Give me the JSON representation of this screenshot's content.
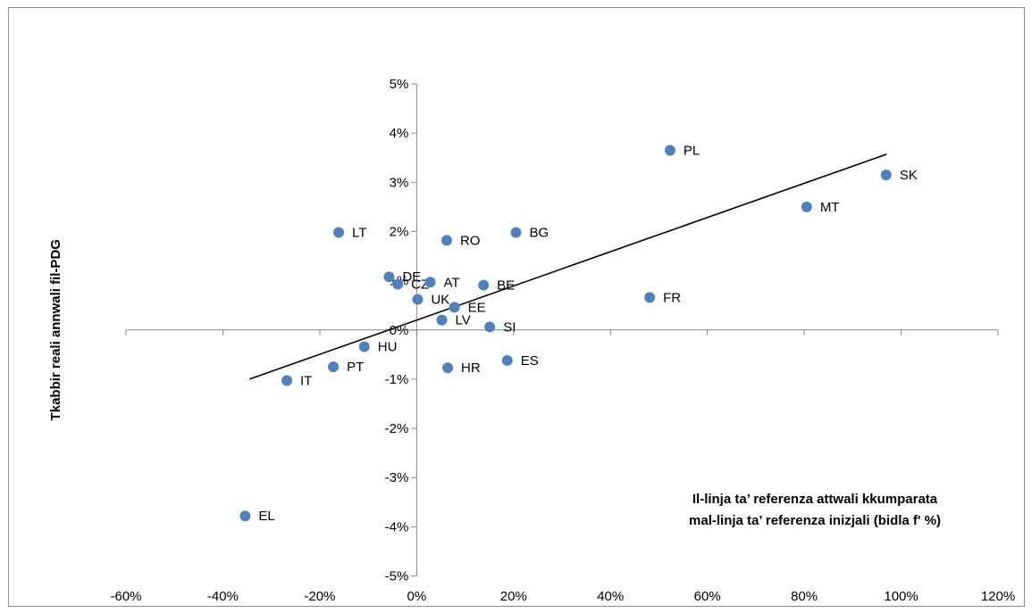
{
  "chart_data": {
    "type": "scatter",
    "xlabel": "Il-linja ta’ referenza attwali kkumparata mal-linja ta’ referenza inizjali (bidla f' %)",
    "xlabel_lines": [
      "Il-linja ta’ referenza attwali kkumparata",
      "mal-linja ta’ referenza inizjali (bidla f' %)"
    ],
    "ylabel": "Tkabbir reali annwali fil-PDG",
    "xlim": [
      -60,
      120
    ],
    "ylim": [
      -5,
      5
    ],
    "x_ticks": [
      "-60%",
      "-40%",
      "-20%",
      "0%",
      "20%",
      "40%",
      "60%",
      "80%",
      "100%",
      "120%"
    ],
    "y_ticks": [
      "-5%",
      "-4%",
      "-3%",
      "-2%",
      "-1%",
      "0%",
      "1%",
      "2%",
      "3%",
      "4%",
      "5%"
    ],
    "points": [
      {
        "label": "PL",
        "x": 52.3,
        "y": 3.65
      },
      {
        "label": "SK",
        "x": 96.9,
        "y": 3.15
      },
      {
        "label": "MT",
        "x": 80.5,
        "y": 2.5
      },
      {
        "label": "LT",
        "x": -16.1,
        "y": 1.98
      },
      {
        "label": "BG",
        "x": 20.5,
        "y": 1.98
      },
      {
        "label": "RO",
        "x": 6.2,
        "y": 1.82
      },
      {
        "label": "DE",
        "x": -5.7,
        "y": 1.08
      },
      {
        "label": "CZ",
        "x": -3.9,
        "y": 0.93
      },
      {
        "label": "AT",
        "x": 2.8,
        "y": 0.97
      },
      {
        "label": "BE",
        "x": 13.8,
        "y": 0.91
      },
      {
        "label": "FR",
        "x": 48.1,
        "y": 0.66
      },
      {
        "label": "UK",
        "x": 0.2,
        "y": 0.62
      },
      {
        "label": "EE",
        "x": 7.8,
        "y": 0.46
      },
      {
        "label": "LV",
        "x": 5.2,
        "y": 0.2
      },
      {
        "label": "SI",
        "x": 15.1,
        "y": 0.06
      },
      {
        "label": "HU",
        "x": -10.8,
        "y": -0.34
      },
      {
        "label": "ES",
        "x": 18.7,
        "y": -0.62
      },
      {
        "label": "PT",
        "x": -17.2,
        "y": -0.75
      },
      {
        "label": "HR",
        "x": 6.4,
        "y": -0.77
      },
      {
        "label": "IT",
        "x": -26.8,
        "y": -1.03
      },
      {
        "label": "EL",
        "x": -35.4,
        "y": -3.78
      }
    ],
    "trendline": {
      "x1": -34.5,
      "y1": -1.0,
      "x2": 97.0,
      "y2": 3.57
    },
    "marker_color": "#4f81bd",
    "line_color": "#000000",
    "grid": false,
    "legend": "none"
  }
}
